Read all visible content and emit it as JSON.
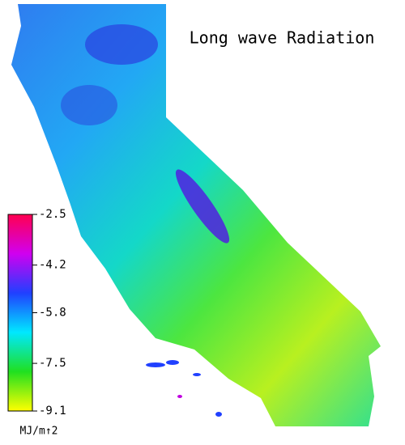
{
  "title": "Long wave Radiation",
  "colorbar": {
    "lim": [
      -9.1,
      -2.5
    ],
    "ticks": [
      -2.5,
      -4.2,
      -5.8,
      -7.5,
      -9.1
    ],
    "label": "MJ/m↑2",
    "colors": [
      "#ffff00",
      "#20e020",
      "#00e8ff",
      "#2040ff",
      "#d000f0",
      "#ff0050"
    ]
  }
}
